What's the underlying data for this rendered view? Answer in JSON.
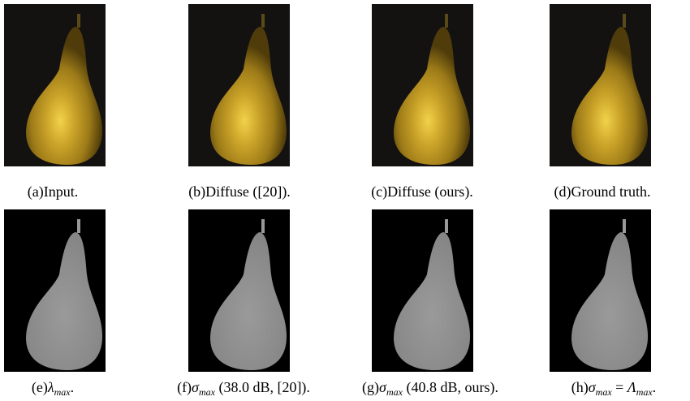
{
  "rows": [
    [
      [
        {
          "t": "(a)Input."
        }
      ],
      [
        {
          "t": "(b)Diffuse ([20])."
        }
      ],
      [
        {
          "t": "(c)Diffuse (ours)."
        }
      ],
      [
        {
          "t": "(d)Ground truth."
        }
      ]
    ],
    [
      [
        {
          "t": "(e)"
        },
        {
          "m": "λ",
          "sub": "max"
        },
        {
          "t": "."
        }
      ],
      [
        {
          "t": "(f)"
        },
        {
          "m": "σ",
          "sub": "max"
        },
        {
          "t": " (38.0 dB, [20])."
        }
      ],
      [
        {
          "t": "(g)"
        },
        {
          "m": "σ",
          "sub": "max"
        },
        {
          "t": " (40.8 dB, ours)."
        }
      ],
      [
        {
          "t": "(h)"
        },
        {
          "m": "σ",
          "sub": "max"
        },
        {
          "t": " = "
        },
        {
          "m": "Λ",
          "sub": "max"
        },
        {
          "t": "."
        }
      ]
    ]
  ]
}
